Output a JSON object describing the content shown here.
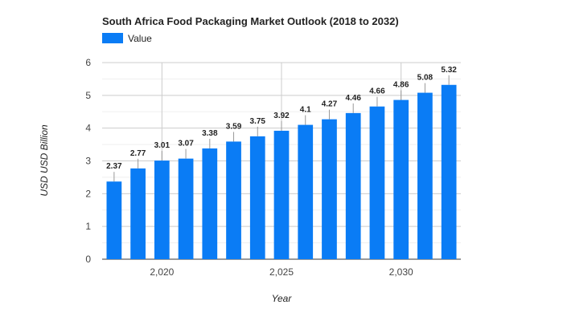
{
  "chart_data": {
    "type": "bar",
    "title": "South Africa Food Packaging Market Outlook (2018 to 2032)",
    "xlabel": "Year",
    "ylabel": "USD USD Billion",
    "legend": {
      "position": "top-left",
      "entries": [
        "Value"
      ]
    },
    "x": [
      2018,
      2019,
      2020,
      2021,
      2022,
      2023,
      2024,
      2025,
      2026,
      2027,
      2028,
      2029,
      2030,
      2031,
      2032
    ],
    "series": [
      {
        "name": "Value",
        "color": "#0a7cf5",
        "values": [
          2.37,
          2.77,
          3.01,
          3.07,
          3.38,
          3.59,
          3.75,
          3.92,
          4.1,
          4.27,
          4.46,
          4.66,
          4.86,
          5.08,
          5.32
        ]
      }
    ],
    "value_labels": [
      "2.37",
      "2.77",
      "3.01",
      "3.07",
      "3.38",
      "3.59",
      "3.75",
      "3.92",
      "4.1",
      "4.27",
      "4.46",
      "4.66",
      "4.86",
      "5.08",
      "5.32"
    ],
    "x_ticks": [
      2020,
      2025,
      2030
    ],
    "x_tick_labels": [
      "2,020",
      "2,025",
      "2,030"
    ],
    "y_ticks": [
      0,
      1,
      2,
      3,
      4,
      5,
      6
    ],
    "ylim": [
      0,
      6
    ],
    "xlim": [
      2017.5,
      2032.5
    ],
    "grid": true
  }
}
